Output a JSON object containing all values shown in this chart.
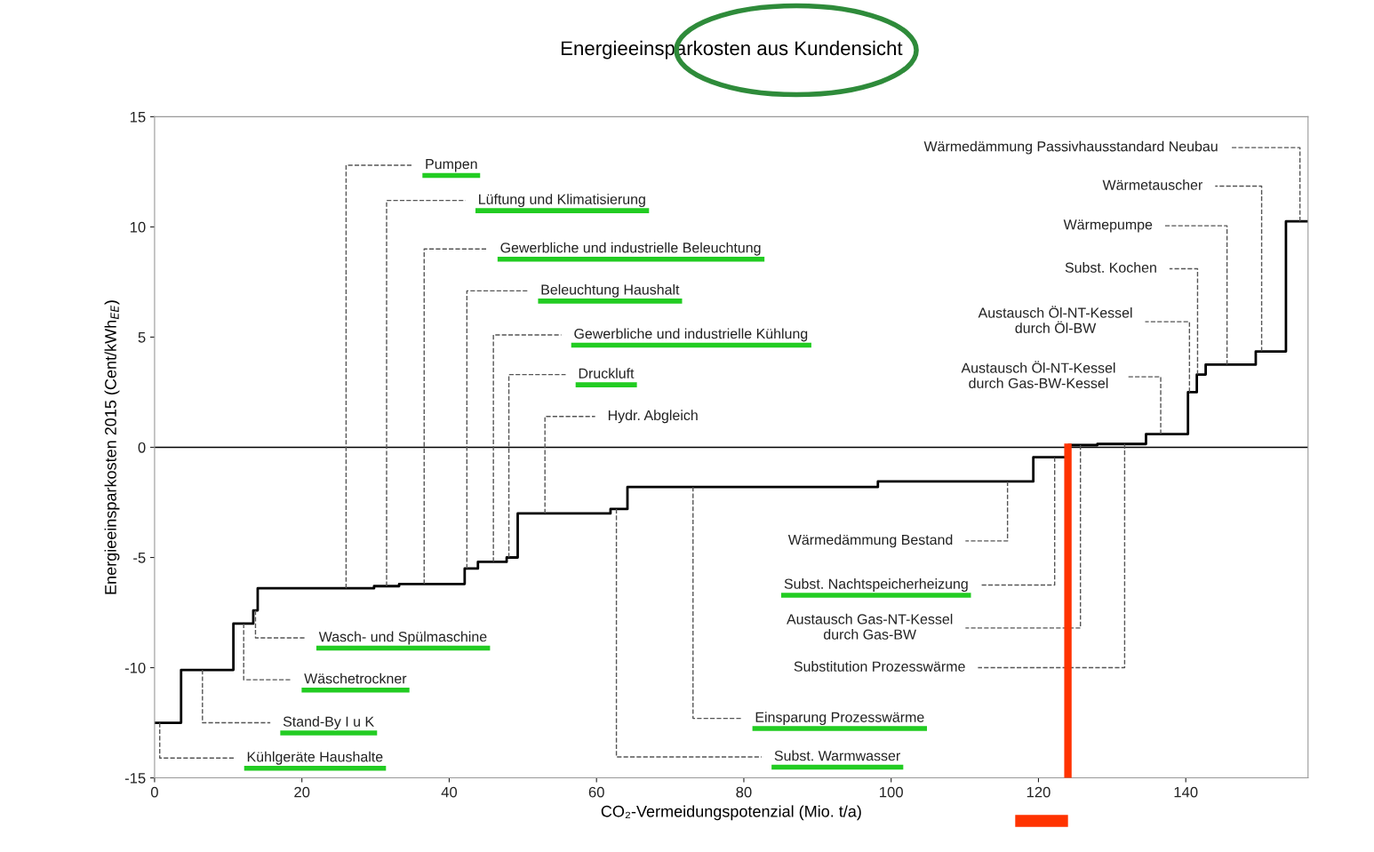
{
  "chart_data": {
    "type": "step",
    "title": "Energieeinsparkosten aus Kundensicht",
    "xlabel": "CO₂-Vermeidungspotenzial (Mio. t/a)",
    "ylabel": "Energieeinsparkosten 2015 (Cent/kWh$_{EE}$)",
    "x": [
      0,
      3.6,
      10.7,
      13.4,
      14.0,
      29.8,
      33.2,
      42.1,
      43.9,
      47.8,
      49.3,
      61.9,
      64.2,
      98.2,
      119.3,
      124.1,
      128.0,
      134.6,
      140.3,
      141.5,
      142.7,
      149.5,
      153.6,
      156.6
    ],
    "series": [
      {
        "color": "#000000",
        "values": [
          -12.5,
          -10.1,
          -8.0,
          -7.4,
          -6.4,
          -6.3,
          -6.2,
          -5.5,
          -5.2,
          -5.0,
          -3.0,
          -2.8,
          -1.8,
          -1.55,
          -0.45,
          0.1,
          0.15,
          0.6,
          2.5,
          3.3,
          3.75,
          4.35,
          10.25,
          10.25
        ]
      }
    ],
    "xlim": [
      0,
      156.6
    ],
    "ylim": [
      -15,
      15
    ],
    "xticks": [
      0,
      20,
      40,
      60,
      80,
      100,
      120,
      140
    ],
    "yticks": [
      -15,
      -10,
      -5,
      0,
      5,
      10,
      15
    ],
    "grid": false,
    "legend": false,
    "line_style": "solid",
    "ref_lines": [
      {
        "axis": "y",
        "value": 0,
        "color": "#000000"
      },
      {
        "axis": "x",
        "value": 124,
        "color": "#ff3300"
      }
    ],
    "annotations": [
      {
        "text": "Pumpen",
        "x": 26.0,
        "y": -6.4
      },
      {
        "text": "Lüftung und Klimatisierung",
        "x": 31.5,
        "y": -6.3
      },
      {
        "text": "Gewerbliche und industrielle Beleuchtung",
        "x": 36.6,
        "y": -6.2
      },
      {
        "text": "Beleuchtung Haushalt",
        "x": 42.4,
        "y": -5.5
      },
      {
        "text": "Gewerbliche und industrielle Kühlung",
        "x": 46.0,
        "y": -5.2
      },
      {
        "text": "Druckluft",
        "x": 48.1,
        "y": -5.0
      },
      {
        "text": "Hydr. Abgleich",
        "x": 53.0,
        "y": -3.0
      },
      {
        "text": "Wasch- und Spülmaschine",
        "x": 13.7,
        "y": -7.4
      },
      {
        "text": "Wäschetrockner",
        "x": 12.1,
        "y": -8.0
      },
      {
        "text": "Stand-By I u K",
        "x": 6.5,
        "y": -10.1
      },
      {
        "text": "Kühlgeräte Haushalte",
        "x": 0.7,
        "y": -12.5
      },
      {
        "text": "Wärmedämmung Bestand",
        "x": 115.8,
        "y": -1.55
      },
      {
        "text": "Subst. Nachtspeicherheizung",
        "x": 122.2,
        "y": -0.45
      },
      {
        "text": "Austausch Gas-NT-Kessel\ndurch Gas-BW",
        "x": 125.7,
        "y": 0.1
      },
      {
        "text": "Substitution Prozesswärme",
        "x": 131.7,
        "y": 0.15
      },
      {
        "text": "Einsparung Prozesswärme",
        "x": 73.1,
        "y": -1.8
      },
      {
        "text": "Subst. Warmwasser",
        "x": 62.7,
        "y": -2.8
      },
      {
        "text": "Wärmedämmung Passivhausstandard Neubau",
        "x": 155.5,
        "y": 10.25
      },
      {
        "text": "Wärmetauscher",
        "x": 150.3,
        "y": 4.35
      },
      {
        "text": "Wärmepumpe",
        "x": 145.6,
        "y": 3.75
      },
      {
        "text": "Subst. Kochen",
        "x": 141.6,
        "y": 3.3
      },
      {
        "text": "Austausch Öl-NT-Kessel\ndurch Öl-BW",
        "x": 140.5,
        "y": 2.5
      },
      {
        "text": "Austausch Öl-NT-Kessel\ndurch Gas-BW-Kessel",
        "x": 136.6,
        "y": 0.6
      }
    ]
  }
}
